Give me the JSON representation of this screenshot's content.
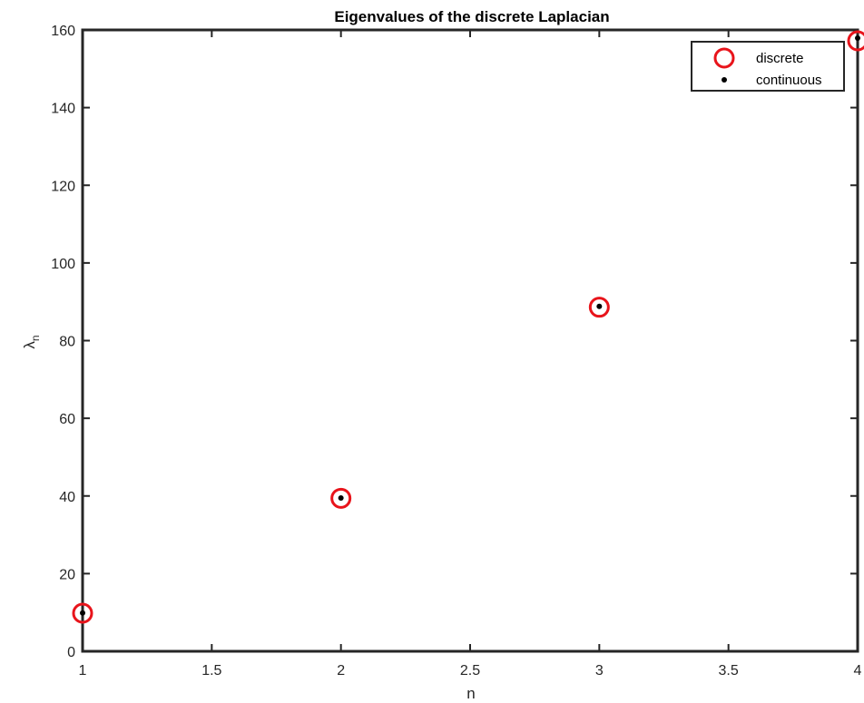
{
  "chart_data": {
    "type": "scatter",
    "title": "Eigenvalues of the discrete Laplacian",
    "xlabel": "n",
    "ylabel_main": "λ",
    "ylabel_sub": "n",
    "xlim": [
      1,
      4
    ],
    "ylim": [
      0,
      160
    ],
    "xticks": [
      1,
      1.5,
      2,
      2.5,
      3,
      3.5,
      4
    ],
    "xtick_labels": [
      "1",
      "1.5",
      "2",
      "2.5",
      "3",
      "3.5",
      "4"
    ],
    "yticks": [
      0,
      20,
      40,
      60,
      80,
      100,
      120,
      140,
      160
    ],
    "ytick_labels": [
      "0",
      "20",
      "40",
      "60",
      "80",
      "100",
      "120",
      "140",
      "160"
    ],
    "grid": false,
    "legend_position": "top-right",
    "series": [
      {
        "name": "discrete",
        "marker": "open-circle",
        "color": "#e8141b",
        "x": [
          1,
          2,
          3,
          4
        ],
        "y": [
          9.8,
          39.4,
          88.6,
          157.2
        ]
      },
      {
        "name": "continuous",
        "marker": "dot",
        "color": "#000000",
        "x": [
          1,
          2,
          3,
          4
        ],
        "y": [
          9.87,
          39.48,
          88.83,
          157.91
        ]
      }
    ]
  }
}
